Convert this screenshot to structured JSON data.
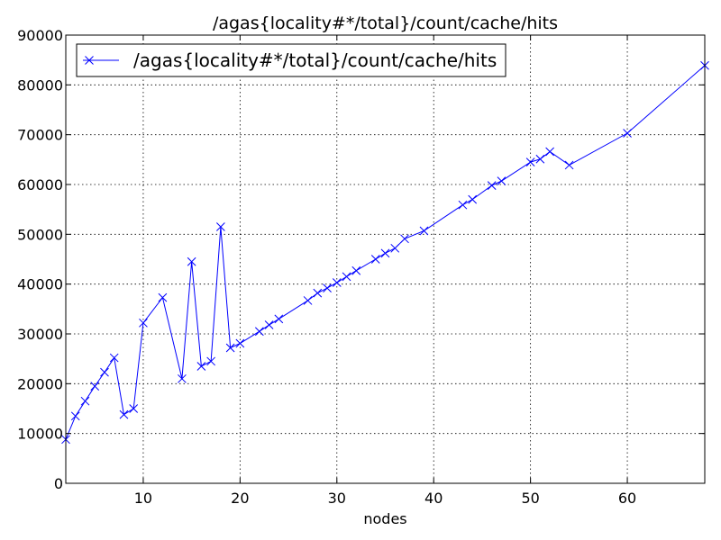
{
  "chart_data": {
    "type": "line",
    "title": "/agas{locality#*/total}/count/cache/hits",
    "xlabel": "nodes",
    "ylabel": "",
    "xlim": [
      2,
      68
    ],
    "ylim": [
      0,
      90000
    ],
    "xticks": [
      10,
      20,
      30,
      40,
      50,
      60
    ],
    "yticks": [
      0,
      10000,
      20000,
      30000,
      40000,
      50000,
      60000,
      70000,
      80000,
      90000
    ],
    "grid": true,
    "legend_position": "top-left",
    "series": [
      {
        "name": "/agas{locality#*/total}/count/cache/hits",
        "color": "#0000ff",
        "marker": "x",
        "x": [
          2,
          3,
          4,
          5,
          6,
          7,
          8,
          9,
          10,
          12,
          14,
          15,
          16,
          17,
          18,
          19,
          20,
          22,
          23,
          24,
          27,
          28,
          29,
          30,
          31,
          32,
          34,
          35,
          36,
          37,
          39,
          43,
          44,
          46,
          47,
          50,
          51,
          52,
          54,
          60,
          68
        ],
        "y": [
          8800,
          13500,
          16500,
          19500,
          22300,
          25200,
          13800,
          15000,
          32200,
          37300,
          21000,
          44500,
          23500,
          24500,
          51500,
          27200,
          28100,
          30500,
          31800,
          33000,
          36700,
          38200,
          39200,
          40300,
          41500,
          42700,
          45000,
          46200,
          47200,
          49100,
          50700,
          55900,
          57000,
          59800,
          60700,
          64500,
          65100,
          66600,
          63900,
          70300,
          83900
        ]
      }
    ]
  }
}
